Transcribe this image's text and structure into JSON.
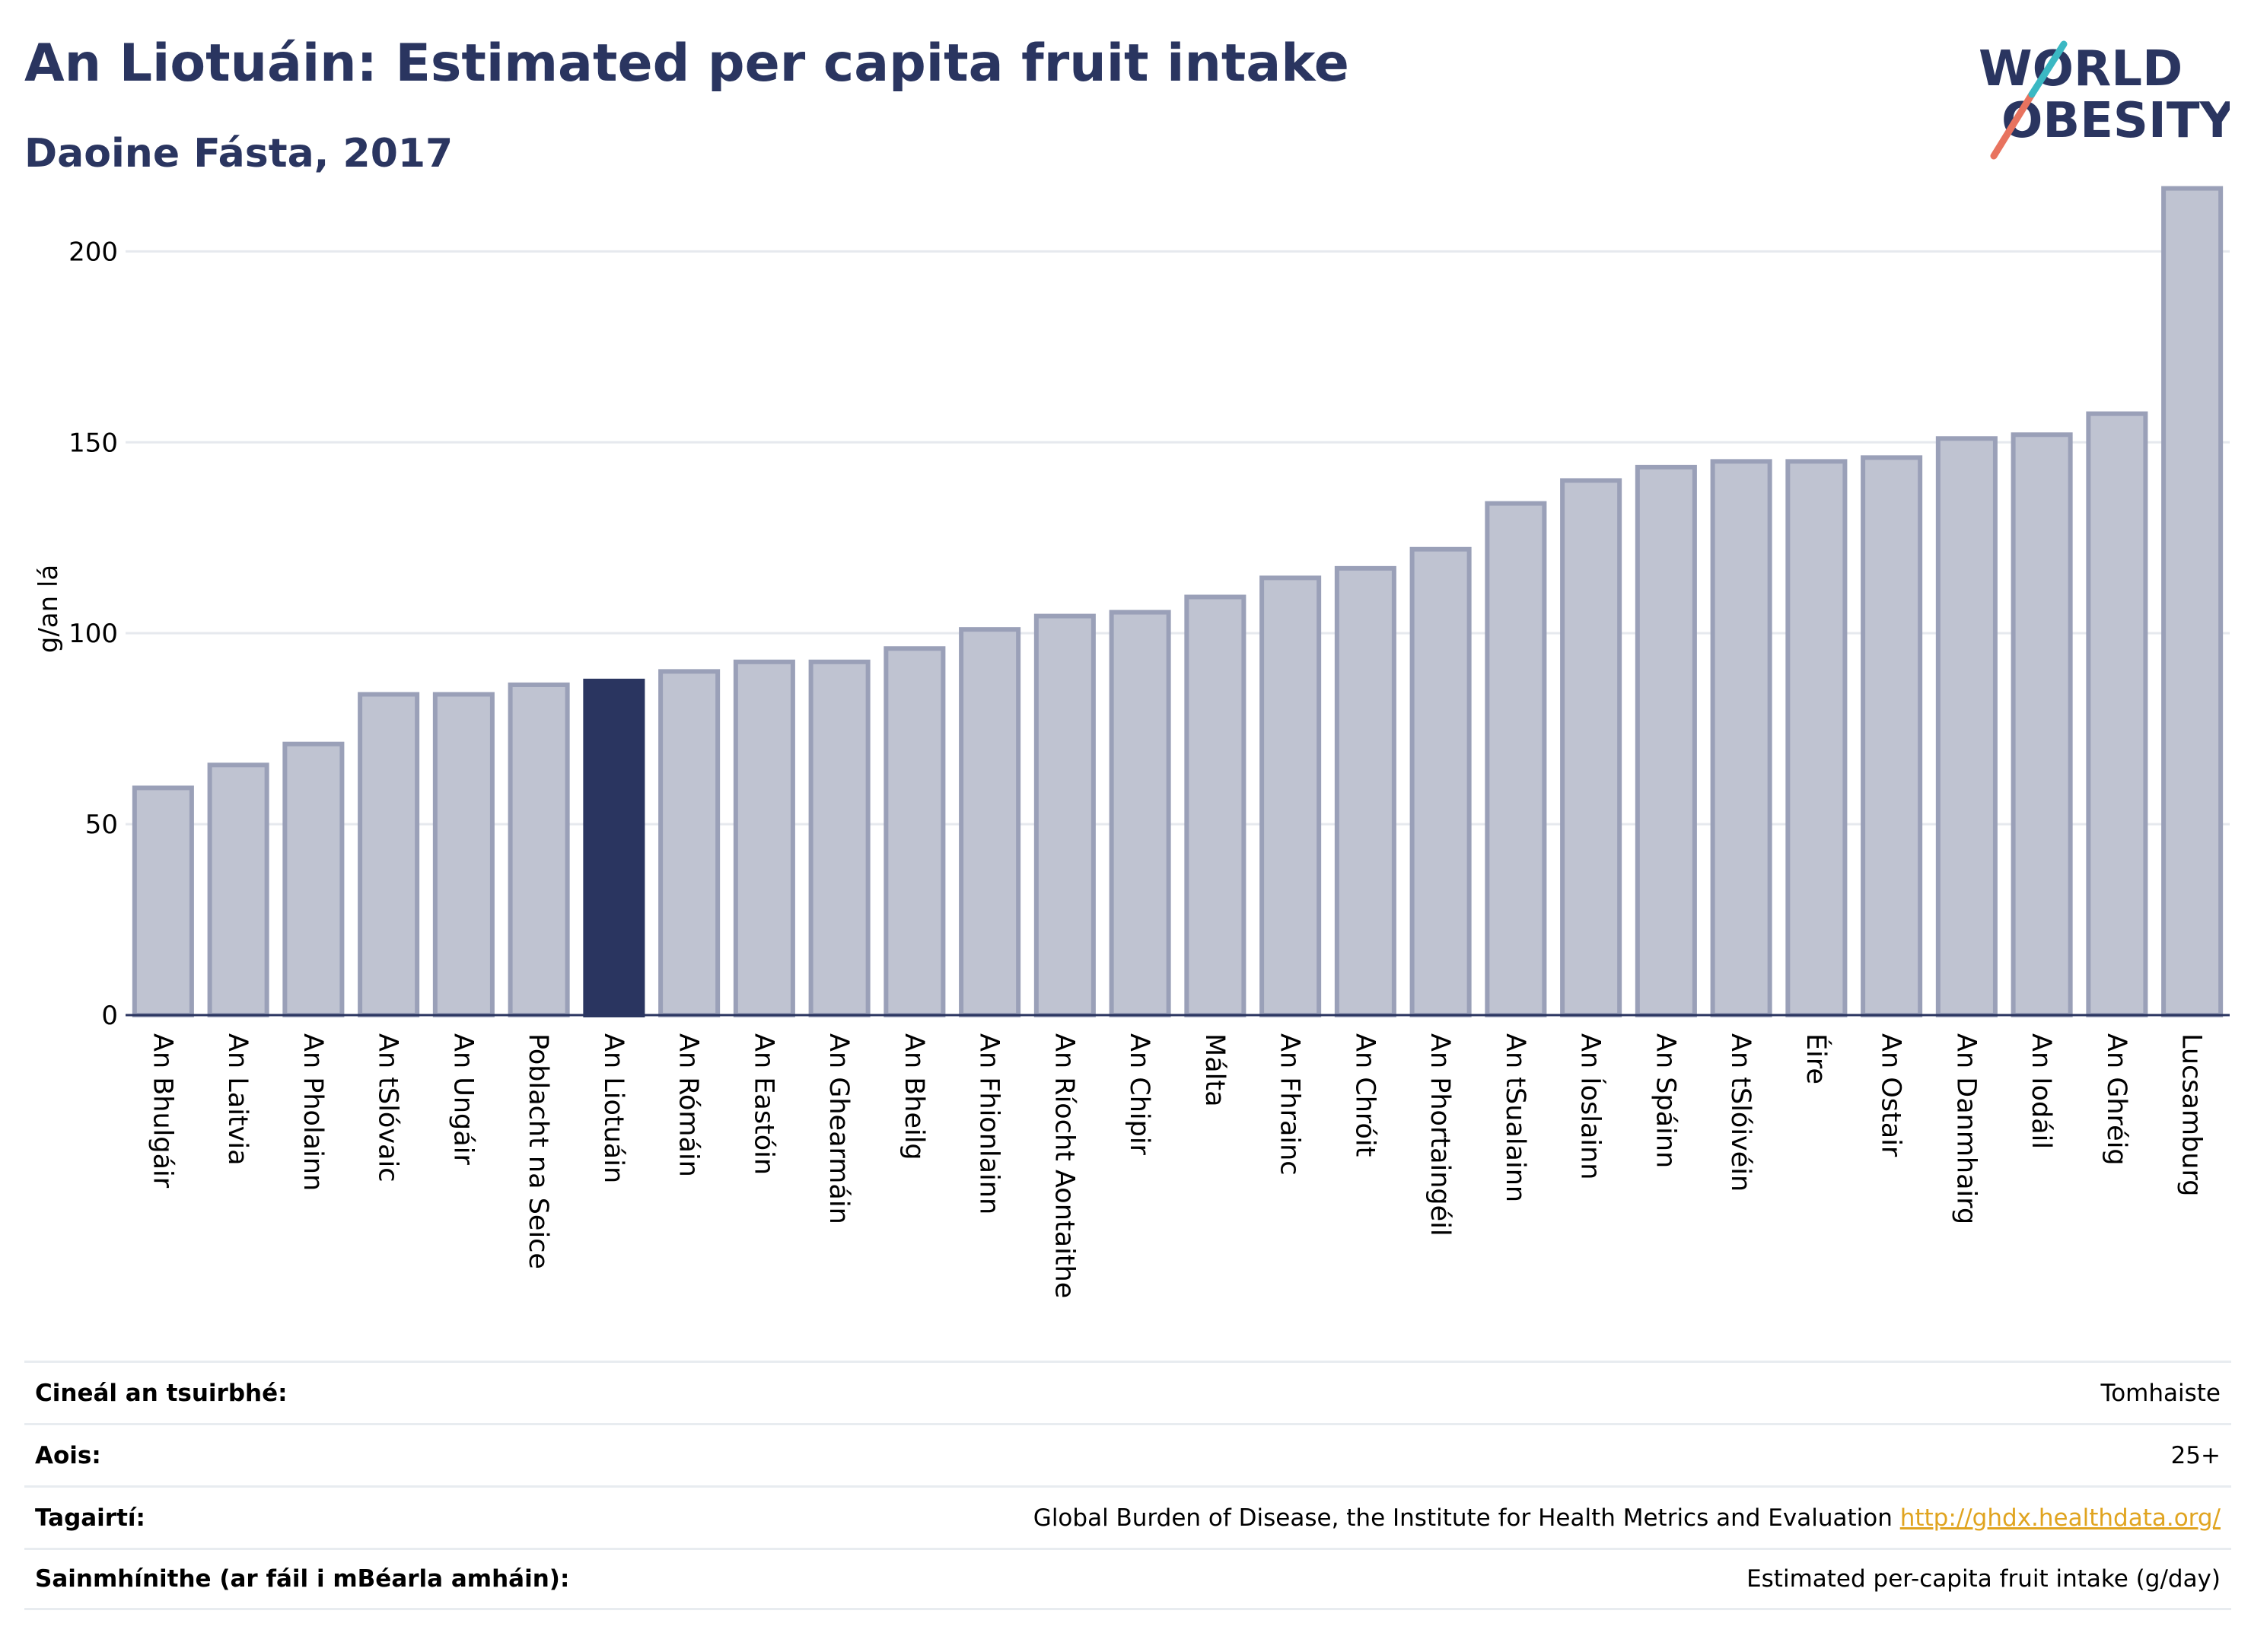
{
  "header": {
    "title": "An Liotuáin: Estimated per capita fruit intake",
    "subtitle": "Daoine Fásta, 2017"
  },
  "logo": {
    "line1": "WORLD",
    "line2": "OBESITY"
  },
  "colors": {
    "highlight": "#2a3560",
    "bar": "#bfc3d1",
    "bar_stroke": "#9aa0b8",
    "grid": "#e6e9ee"
  },
  "chart_data": {
    "type": "bar",
    "ylabel": "g/an lá",
    "ylim": [
      0,
      220
    ],
    "yticks": [
      0,
      50,
      100,
      150,
      200
    ],
    "grid": true,
    "highlight": "An Liotuáin",
    "categories": [
      "An Bhulgáir",
      "An Laitvia",
      "An Pholainn",
      "An tSlóvaic",
      "An Ungáir",
      "Poblacht na Seice",
      "An Liotuáin",
      "An Rómáin",
      "An Eastóin",
      "An Ghearmáin",
      "An Bheilg",
      "An Fhionlainn",
      "An Ríocht Aontaithe",
      "An Chipir",
      "Málta",
      "An Fhrainc",
      "An Chróit",
      "An Phortaingéil",
      "An tSualainn",
      "An Íoslainn",
      "An Spáinn",
      "An tSlóivéin",
      "Éire",
      "An Ostair",
      "An Danmhairg",
      "An Iodáil",
      "An Ghréig",
      "Lucsamburg"
    ],
    "values": [
      59.5,
      65.5,
      71,
      84,
      84,
      86.5,
      87.5,
      90,
      92.5,
      92.5,
      96,
      101,
      104.5,
      105.5,
      109.5,
      114.5,
      117,
      122,
      134,
      140,
      143.5,
      145,
      145,
      146,
      151,
      152,
      157.5,
      216.5
    ]
  },
  "meta": [
    {
      "label": "Cineál an tsuirbhé:",
      "value": "Tomhaiste"
    },
    {
      "label": "Aois:",
      "value": "25+"
    },
    {
      "label": "Tagairtí:",
      "value": "Global Burden of Disease, the Institute for Health Metrics and Evaluation",
      "link": "http://ghdx.healthdata.org/"
    },
    {
      "label": "Sainmhínithe (ar fáil i mBéarla amháin):",
      "value": "Estimated per-capita fruit intake (g/day)"
    }
  ]
}
